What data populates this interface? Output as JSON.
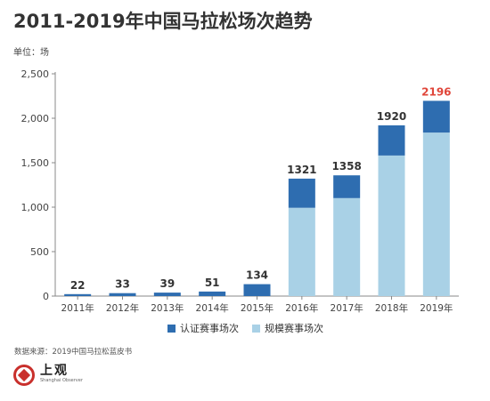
{
  "header": {
    "title": "2011-2019年中国马拉松场次趋势"
  },
  "unit_label": "单位：场",
  "source": "数据来源：2019中国马拉松蓝皮书",
  "logo": {
    "cn": "上观",
    "en": "Shanghai Observer"
  },
  "colors": {
    "certified": "#2e6db0",
    "scale": "#a9d1e6",
    "highlight": "#e0463a",
    "axis": "#888888",
    "grid": "#e0e0e0"
  },
  "chart_data": {
    "type": "bar",
    "stacked": true,
    "categories": [
      "2011年",
      "2012年",
      "2013年",
      "2014年",
      "2015年",
      "2016年",
      "2017年",
      "2018年",
      "2019年"
    ],
    "series": [
      {
        "name": "认证赛事场次",
        "values": [
          22,
          33,
          39,
          51,
          134,
          328,
          256,
          339,
          357
        ]
      },
      {
        "name": "规模赛事场次",
        "values": [
          0,
          0,
          0,
          0,
          0,
          993,
          1102,
          1581,
          1839
        ]
      }
    ],
    "totals": [
      22,
      33,
      39,
      51,
      134,
      1321,
      1358,
      1920,
      2196
    ],
    "highlight_index": 8,
    "yticks": [
      "0",
      "500",
      "1,000",
      "1,500",
      "2,000",
      "2,500"
    ],
    "ylim": [
      0,
      2500
    ],
    "legend_position": "bottom",
    "grid": false
  }
}
